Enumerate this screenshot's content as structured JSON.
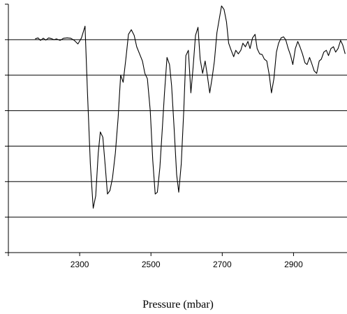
{
  "chart_data": {
    "type": "line",
    "title": "",
    "xlabel": "Pressure (mbar)",
    "ylabel": "",
    "xlim": [
      2100,
      3050
    ],
    "ylim": [
      -6,
      1
    ],
    "x_ticks": [
      2300,
      2500,
      2700,
      2900
    ],
    "x_tick_marks": [
      2100,
      2300,
      2500,
      2700,
      2900,
      3100
    ],
    "y_gridlines": [
      0,
      -1,
      -2,
      -3,
      -4,
      -5
    ],
    "y_tick_marks": [
      1,
      0,
      -1,
      -2,
      -3,
      -4,
      -5,
      -6
    ],
    "grid": true,
    "series": [
      {
        "color": "#000000",
        "x": [
          2175,
          2183,
          2190,
          2198,
          2205,
          2213,
          2220,
          2228,
          2235,
          2245,
          2255,
          2265,
          2275,
          2285,
          2295,
          2305,
          2315,
          2322,
          2330,
          2338,
          2345,
          2352,
          2358,
          2365,
          2372,
          2378,
          2385,
          2392,
          2400,
          2408,
          2415,
          2422,
          2430,
          2437,
          2445,
          2453,
          2460,
          2468,
          2476,
          2483,
          2490,
          2498,
          2505,
          2512,
          2518,
          2525,
          2532,
          2538,
          2545,
          2552,
          2558,
          2565,
          2572,
          2578,
          2585,
          2592,
          2598,
          2605,
          2612,
          2618,
          2625,
          2632,
          2638,
          2645,
          2652,
          2658,
          2665,
          2672,
          2678,
          2685,
          2692,
          2698,
          2705,
          2712,
          2718,
          2725,
          2732,
          2738,
          2745,
          2752,
          2758,
          2765,
          2772,
          2778,
          2785,
          2792,
          2798,
          2805,
          2812,
          2818,
          2825,
          2832,
          2838,
          2845,
          2852,
          2858,
          2865,
          2872,
          2878,
          2885,
          2892,
          2898,
          2905,
          2912,
          2918,
          2925,
          2932,
          2938,
          2945,
          2952,
          2958,
          2965,
          2972,
          2978,
          2985,
          2992,
          2998,
          3005,
          3012,
          3018,
          3025,
          3032,
          3038,
          3045
        ],
        "values": [
          0.02,
          0.05,
          -0.02,
          0.04,
          -0.01,
          0.05,
          0.03,
          0.0,
          0.02,
          -0.02,
          0.04,
          0.05,
          0.04,
          -0.02,
          -0.12,
          0.05,
          0.38,
          -1.5,
          -3.5,
          -4.75,
          -4.4,
          -3.2,
          -2.6,
          -2.75,
          -3.6,
          -4.35,
          -4.25,
          -3.9,
          -3.2,
          -2.2,
          -1.0,
          -1.2,
          -0.5,
          0.15,
          0.28,
          0.12,
          -0.2,
          -0.4,
          -0.6,
          -0.95,
          -1.1,
          -2.0,
          -3.4,
          -4.35,
          -4.3,
          -3.6,
          -2.5,
          -1.5,
          -0.5,
          -0.7,
          -1.3,
          -2.5,
          -3.8,
          -4.3,
          -3.5,
          -2.0,
          -0.45,
          -0.3,
          -1.5,
          -0.8,
          0.12,
          0.35,
          -0.55,
          -0.95,
          -0.6,
          -1.0,
          -1.5,
          -1.05,
          -0.6,
          0.2,
          0.6,
          0.95,
          0.85,
          0.5,
          -0.1,
          -0.3,
          -0.48,
          -0.3,
          -0.4,
          -0.3,
          -0.1,
          -0.2,
          -0.05,
          -0.25,
          0.05,
          0.15,
          -0.25,
          -0.4,
          -0.42,
          -0.55,
          -0.6,
          -1.0,
          -1.5,
          -1.1,
          -0.35,
          -0.1,
          0.05,
          0.08,
          0.0,
          -0.25,
          -0.45,
          -0.7,
          -0.25,
          -0.05,
          -0.2,
          -0.4,
          -0.65,
          -0.7,
          -0.5,
          -0.7,
          -0.88,
          -0.95,
          -0.6,
          -0.55,
          -0.35,
          -0.3,
          -0.45,
          -0.25,
          -0.2,
          -0.35,
          -0.25,
          -0.02,
          -0.15,
          -0.4
        ]
      }
    ]
  }
}
